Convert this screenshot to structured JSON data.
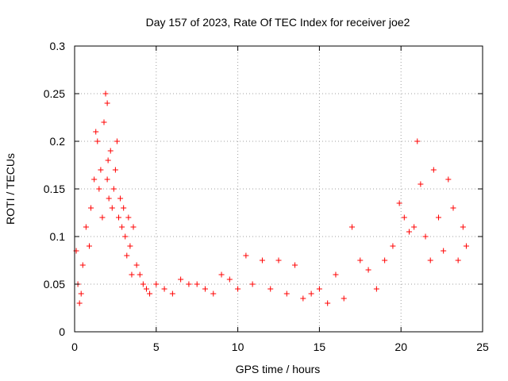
{
  "chart_data": {
    "type": "scatter",
    "title": "Day 157 of 2023, Rate Of TEC Index for receiver joe2",
    "xlabel": "GPS time / hours",
    "ylabel": "ROTI / TECUs",
    "xlim": [
      0,
      25
    ],
    "ylim": [
      0,
      0.3
    ],
    "xticks": [
      "0",
      "5",
      "10",
      "15",
      "20",
      "25"
    ],
    "yticks": [
      "0",
      "0.05",
      "0.1",
      "0.15",
      "0.2",
      "0.25",
      "0.3"
    ],
    "grid": true,
    "marker": "plus",
    "color": "#ff0000",
    "series": [
      {
        "x": [
          0.1,
          0.2,
          0.3,
          0.4,
          0.5,
          0.7,
          0.9,
          1.0,
          1.2,
          1.3,
          1.4,
          1.5,
          1.6,
          1.7,
          1.8,
          1.9,
          2.0,
          2.0,
          2.05,
          2.1,
          2.2,
          2.3,
          2.4,
          2.5,
          2.6,
          2.7,
          2.8,
          2.9,
          3.0,
          3.1,
          3.2,
          3.3,
          3.4,
          3.5,
          3.6,
          3.8,
          4.0,
          4.2,
          4.4,
          4.6,
          5.0,
          5.5,
          6.0,
          6.5,
          7.0,
          7.5,
          8.0,
          8.5,
          9.0,
          9.5,
          10.0,
          10.5,
          10.9,
          11.5,
          12.0,
          12.5,
          13.0,
          13.5,
          14.0,
          14.5,
          15.0,
          15.5,
          16.0,
          16.5,
          17.0,
          17.5,
          18.0,
          18.5,
          19.0,
          19.5,
          19.9,
          20.2,
          20.5,
          20.8,
          21.0,
          21.2,
          21.5,
          21.8,
          22.0,
          22.3,
          22.6,
          22.9,
          23.2,
          23.5,
          23.8,
          24.0
        ],
        "y": [
          0.085,
          0.05,
          0.03,
          0.04,
          0.07,
          0.11,
          0.09,
          0.13,
          0.16,
          0.21,
          0.2,
          0.15,
          0.17,
          0.12,
          0.22,
          0.25,
          0.24,
          0.16,
          0.18,
          0.14,
          0.19,
          0.13,
          0.15,
          0.17,
          0.2,
          0.12,
          0.14,
          0.11,
          0.13,
          0.1,
          0.08,
          0.12,
          0.09,
          0.06,
          0.11,
          0.07,
          0.06,
          0.05,
          0.045,
          0.04,
          0.05,
          0.045,
          0.04,
          0.055,
          0.05,
          0.05,
          0.045,
          0.04,
          0.06,
          0.055,
          0.045,
          0.08,
          0.05,
          0.075,
          0.045,
          0.075,
          0.04,
          0.07,
          0.035,
          0.04,
          0.045,
          0.03,
          0.06,
          0.035,
          0.11,
          0.075,
          0.065,
          0.045,
          0.075,
          0.09,
          0.135,
          0.12,
          0.105,
          0.11,
          0.2,
          0.155,
          0.1,
          0.075,
          0.17,
          0.12,
          0.085,
          0.16,
          0.13,
          0.075,
          0.11,
          0.09
        ]
      }
    ]
  }
}
